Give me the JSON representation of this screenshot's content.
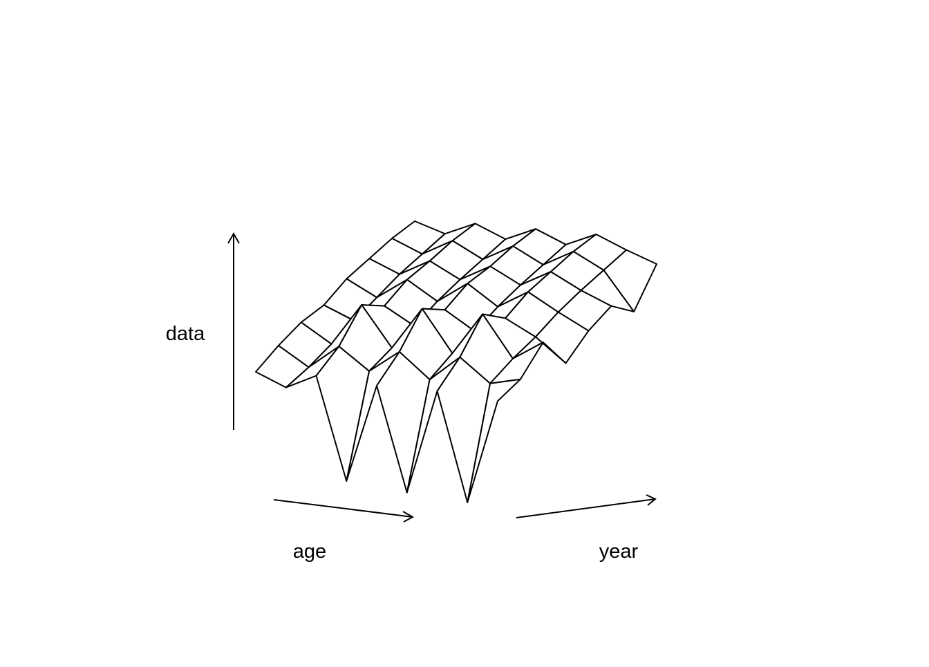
{
  "chart_data": {
    "type": "surface",
    "xlabel": "age",
    "ylabel": "year",
    "zlabel": "data",
    "zlim": [
      -6,
      11
    ],
    "z": [
      [
        1.0,
        0.2,
        1.2,
        -5.5,
        1.0,
        -5.8,
        1.1,
        -6.0,
        0.9
      ],
      [
        2.6,
        1.4,
        3.0,
        1.6,
        3.1,
        1.5,
        3.2,
        1.7,
        2.2
      ],
      [
        4.0,
        2.8,
        5.6,
        3.0,
        5.8,
        3.1,
        5.9,
        3.2,
        4.5
      ],
      [
        5.0,
        4.2,
        5.4,
        4.3,
        5.6,
        4.4,
        5.5,
        4.5,
        3.0
      ],
      [
        6.6,
        5.6,
        7.0,
        5.8,
        7.2,
        5.9,
        7.1,
        6.0,
        5.0
      ],
      [
        7.8,
        7.0,
        8.1,
        7.1,
        8.2,
        7.2,
        8.3,
        7.3,
        6.5
      ],
      [
        9.0,
        8.2,
        9.3,
        8.3,
        9.4,
        8.4,
        9.5,
        8.5,
        6.0
      ],
      [
        10.0,
        9.4,
        10.3,
        9.5,
        10.4,
        9.6,
        10.5,
        9.7,
        9.0
      ]
    ]
  }
}
